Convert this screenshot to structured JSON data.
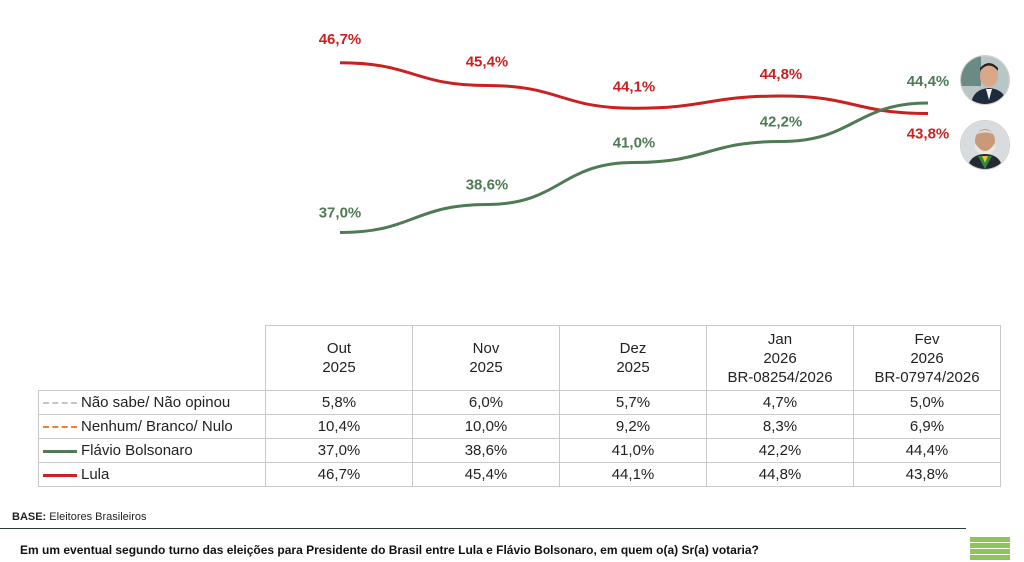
{
  "chart_data": {
    "type": "line",
    "categories": [
      "Out 2025",
      "Nov 2025",
      "Dez 2025",
      "Jan 2026",
      "Fev 2026"
    ],
    "series": [
      {
        "name": "Lula",
        "color": "#cc1f1f",
        "values": [
          46.7,
          45.4,
          44.1,
          44.8,
          43.8
        ],
        "labels": [
          "46,7%",
          "45,4%",
          "44,1%",
          "44,8%",
          "43,8%"
        ]
      },
      {
        "name": "Flávio Bolsonaro",
        "color": "#4e7a54",
        "values": [
          37.0,
          38.6,
          41.0,
          42.2,
          44.4
        ],
        "labels": [
          "37,0%",
          "38,6%",
          "41,0%",
          "42,2%",
          "44,4%"
        ]
      }
    ],
    "ylim": [
      36,
      48
    ]
  },
  "table": {
    "headers": [
      {
        "l1": "Out",
        "l2": "2025",
        "l3": ""
      },
      {
        "l1": "Nov",
        "l2": "2025",
        "l3": ""
      },
      {
        "l1": "Dez",
        "l2": "2025",
        "l3": ""
      },
      {
        "l1": "Jan",
        "l2": "2026",
        "l3": "BR-08254/2026"
      },
      {
        "l1": "Fev",
        "l2": "2026",
        "l3": "BR-07974/2026"
      }
    ],
    "rows": [
      {
        "name": "Não sabe/ Não opinou",
        "style": "nao",
        "values": [
          "5,8%",
          "6,0%",
          "5,7%",
          "4,7%",
          "5,0%"
        ]
      },
      {
        "name": "Nenhum/ Branco/ Nulo",
        "style": "nen",
        "values": [
          "10,4%",
          "10,0%",
          "9,2%",
          "8,3%",
          "6,9%"
        ]
      },
      {
        "name": "Flávio Bolsonaro",
        "style": "fla",
        "values": [
          "37,0%",
          "38,6%",
          "41,0%",
          "42,2%",
          "44,4%"
        ]
      },
      {
        "name": "Lula",
        "style": "lul",
        "values": [
          "46,7%",
          "45,4%",
          "44,1%",
          "44,8%",
          "43,8%"
        ]
      }
    ]
  },
  "footer": {
    "base_label": "BASE:",
    "base_value": "Eleitores Brasileiros",
    "question": "Em um eventual segundo turno das eleições para Presidente do Brasil entre Lula e Flávio Bolsonaro, em quem o(a) Sr(a) votaria?"
  },
  "avatars": {
    "top": "Flávio Bolsonaro",
    "bottom": "Lula"
  },
  "colors": {
    "lula": "#cc1f1f",
    "flavio": "#4e7a54",
    "logo": "#8fc45a"
  }
}
